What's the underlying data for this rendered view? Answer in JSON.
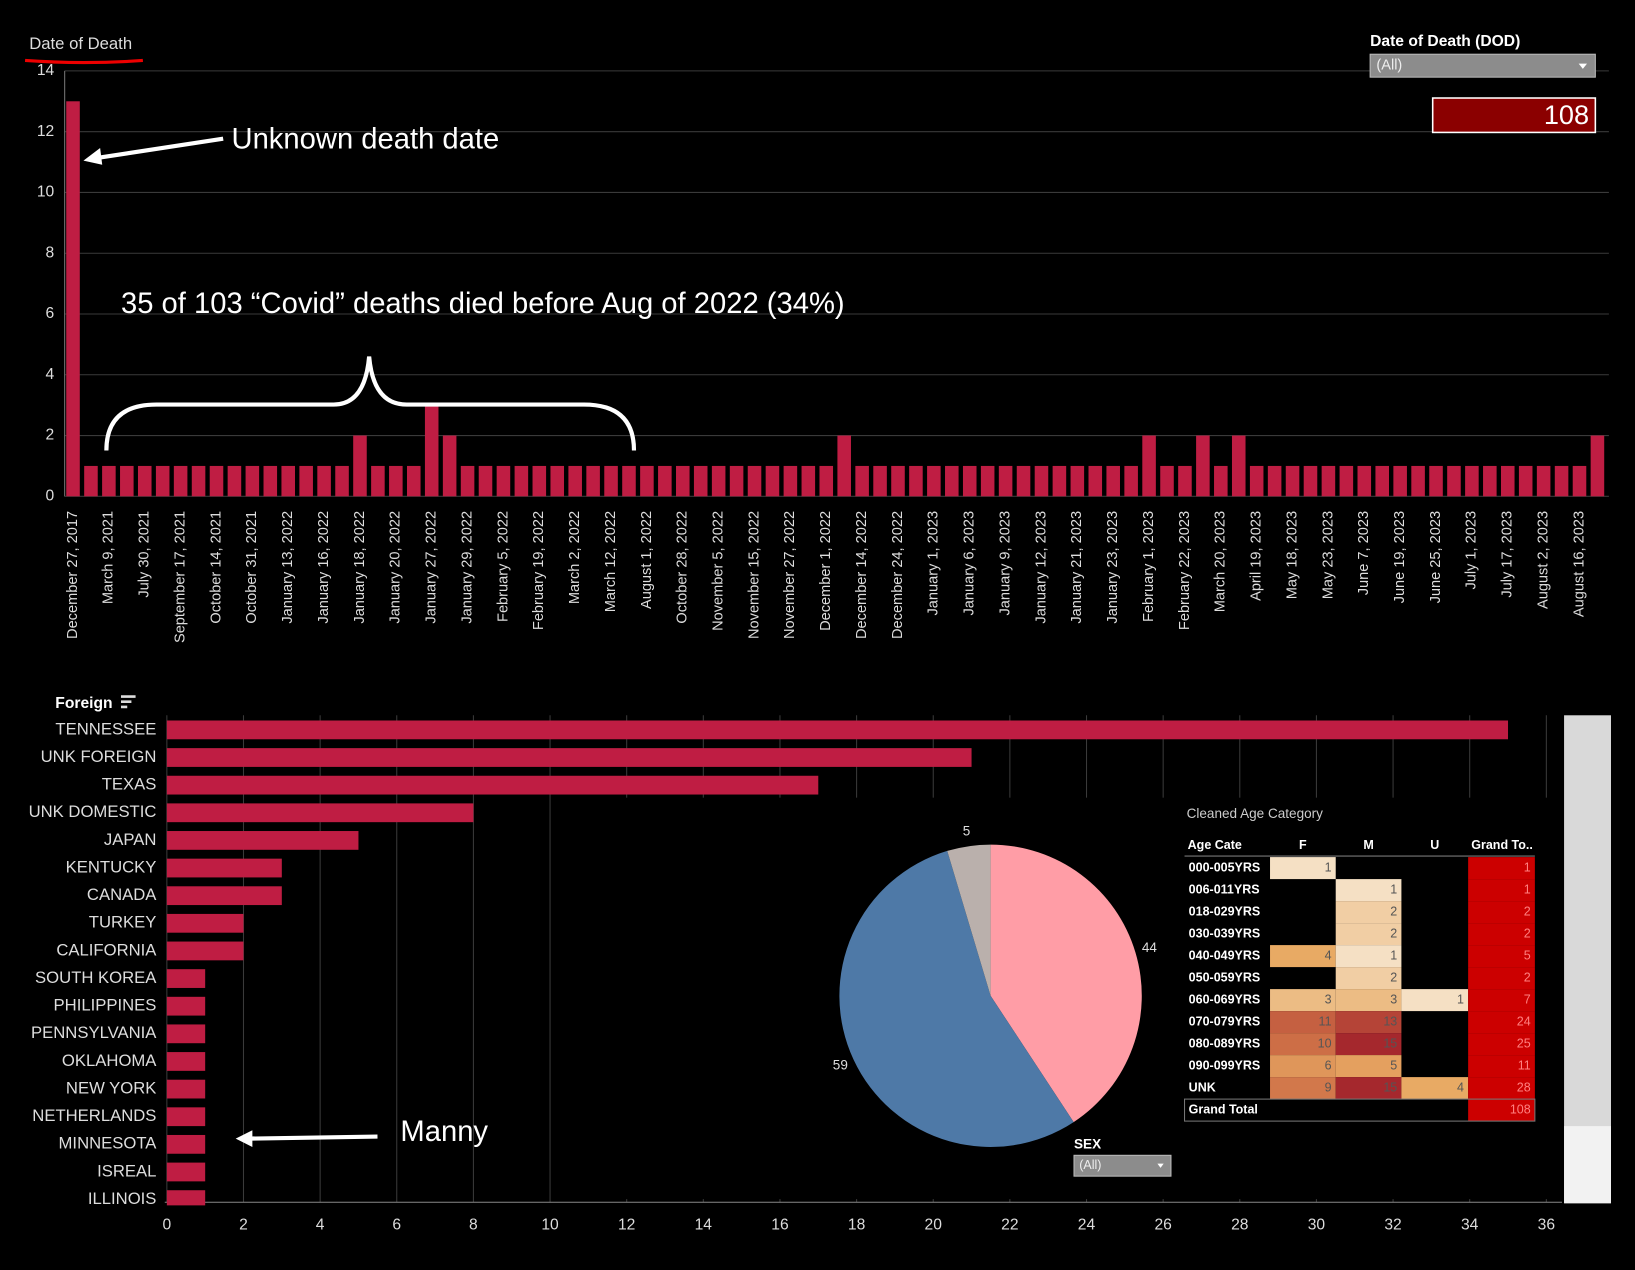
{
  "chart_data": [
    {
      "type": "bar",
      "title": "Date of Death",
      "categories": [
        "December 27, 2017",
        null,
        "March 9, 2021",
        null,
        "July 30, 2021",
        null,
        "September 17, 2021",
        null,
        "October 14, 2021",
        null,
        "October 31, 2021",
        null,
        "January 13, 2022",
        null,
        "January 16, 2022",
        null,
        "January 18, 2022",
        null,
        "January 20, 2022",
        null,
        "January 27, 2022",
        null,
        "January 29, 2022",
        null,
        "February 5, 2022",
        null,
        "February 19, 2022",
        null,
        "March 2, 2022",
        null,
        "March 12, 2022",
        null,
        "August 1, 2022",
        null,
        "October 28, 2022",
        null,
        "November 5, 2022",
        null,
        "November 15, 2022",
        null,
        "November 27, 2022",
        null,
        "December 1, 2022",
        null,
        "December 14, 2022",
        null,
        "December 24, 2022",
        null,
        "January 1, 2023",
        null,
        "January 6, 2023",
        null,
        "January 9, 2023",
        null,
        "January 12, 2023",
        null,
        "January 21, 2023",
        null,
        "January 23, 2023",
        null,
        "February 1, 2023",
        null,
        "February 22, 2023",
        null,
        "March 20, 2023",
        null,
        "April 19, 2023",
        null,
        "May 18, 2023",
        null,
        "May 23, 2023",
        null,
        "June 7, 2023",
        null,
        "June 19, 2023",
        null,
        "June 25, 2023",
        null,
        "July 1, 2023",
        null,
        "July 17, 2023",
        null,
        "August 2, 2023",
        null,
        "August 16, 2023",
        null
      ],
      "values": [
        13,
        1,
        1,
        1,
        1,
        1,
        1,
        1,
        1,
        1,
        1,
        1,
        1,
        1,
        1,
        1,
        2,
        1,
        1,
        1,
        3,
        2,
        1,
        1,
        1,
        1,
        1,
        1,
        1,
        1,
        1,
        1,
        1,
        1,
        1,
        1,
        1,
        1,
        1,
        1,
        1,
        1,
        1,
        2,
        1,
        1,
        1,
        1,
        1,
        1,
        1,
        1,
        1,
        1,
        1,
        1,
        1,
        1,
        1,
        1,
        2,
        1,
        1,
        2,
        1,
        2,
        1,
        1,
        1,
        1,
        1,
        1,
        1,
        1,
        1,
        1,
        1,
        1,
        1,
        1,
        1,
        1,
        1,
        1,
        1,
        2
      ],
      "color": "#bf1d43",
      "ylim": [
        0,
        14
      ],
      "yticks": [
        0,
        2,
        4,
        6,
        8,
        10,
        12,
        14
      ],
      "grid": true,
      "annotations": [
        "Unknown death date",
        "35 of 103 “Covid” deaths died before Aug of 2022 (34%)"
      ]
    },
    {
      "type": "hbar",
      "title": "Foreign",
      "categories": [
        "TENNESSEE",
        "UNK FOREIGN",
        "TEXAS",
        "UNK DOMESTIC",
        "JAPAN",
        "KENTUCKY",
        "CANADA",
        "TURKEY",
        "CALIFORNIA",
        "SOUTH KOREA",
        "PHILIPPINES",
        "PENNSYLVANIA",
        "OKLAHOMA",
        "NEW YORK",
        "NETHERLANDS",
        "MINNESOTA",
        "ISREAL",
        "ILLINOIS"
      ],
      "values": [
        35,
        21,
        17,
        8,
        5,
        3,
        3,
        2,
        2,
        1,
        1,
        1,
        1,
        1,
        1,
        1,
        1,
        1
      ],
      "color": "#bf1d43",
      "xlim": [
        0,
        36
      ],
      "xticks": [
        0,
        2,
        4,
        6,
        8,
        10,
        12,
        14,
        16,
        18,
        20,
        22,
        24,
        26,
        28,
        30,
        32,
        34,
        36
      ],
      "grid": true,
      "annotations": [
        "Manny"
      ]
    },
    {
      "type": "pie",
      "values": [
        44,
        59,
        5
      ],
      "colors": [
        "#ff9da6",
        "#4e79a7",
        "#bab0ac"
      ]
    }
  ],
  "filters": [
    {
      "label": "Date of Death (DOD)",
      "value": "(All)"
    },
    {
      "label": "SEX",
      "value": "(All)"
    }
  ],
  "kpi": 108,
  "table": {
    "title": "Cleaned Age Category",
    "columns": [
      "Age Cate",
      "F",
      "M",
      "U",
      "Grand To.."
    ],
    "rows": [
      [
        "000-005YRS",
        1,
        null,
        null,
        1
      ],
      [
        "006-011YRS",
        null,
        1,
        null,
        1
      ],
      [
        "018-029YRS",
        null,
        2,
        null,
        2
      ],
      [
        "030-039YRS",
        null,
        2,
        null,
        2
      ],
      [
        "040-049YRS",
        4,
        1,
        null,
        5
      ],
      [
        "050-059YRS",
        null,
        2,
        null,
        2
      ],
      [
        "060-069YRS",
        3,
        3,
        1,
        7
      ],
      [
        "070-079YRS",
        11,
        13,
        null,
        24
      ],
      [
        "080-089YRS",
        10,
        15,
        null,
        25
      ],
      [
        "090-099YRS",
        6,
        5,
        null,
        11
      ],
      [
        "UNK",
        9,
        15,
        4,
        28
      ],
      [
        "Grand Total",
        null,
        null,
        null,
        108
      ]
    ]
  }
}
